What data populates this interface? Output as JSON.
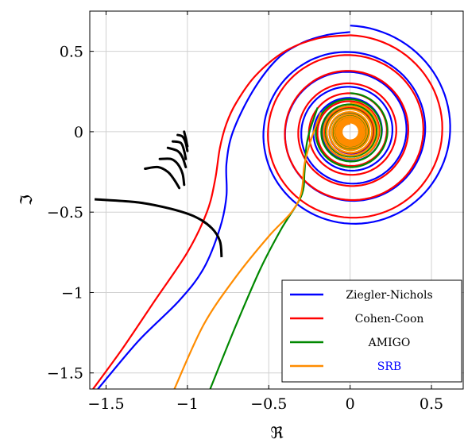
{
  "chart_data": {
    "type": "line",
    "title": "",
    "xlabel": "ℜ",
    "ylabel": "ℑ",
    "xlim": [
      -1.6,
      0.7
    ],
    "ylim": [
      -1.6,
      0.75
    ],
    "x_ticks": [
      -1.5,
      -1,
      -0.5,
      0,
      0.5
    ],
    "x_tick_labels": [
      "−1.5",
      "−1",
      "−0.5",
      "0",
      "0.5"
    ],
    "y_ticks": [
      -1.5,
      -1,
      -0.5,
      0,
      0.5
    ],
    "y_tick_labels": [
      "−1.5",
      "−1",
      "−0.5",
      "0",
      "0.5"
    ],
    "grid": true,
    "legend_position": "bottom-right",
    "series": [
      {
        "name": "Ziegler-Nichols",
        "color": "#0000ff",
        "tail": [
          [
            -1.55,
            -1.6
          ],
          [
            -1.3,
            -1.3
          ],
          [
            -1.05,
            -1.05
          ],
          [
            -0.9,
            -0.85
          ],
          [
            -0.8,
            -0.6
          ],
          [
            -0.76,
            -0.4
          ],
          [
            -0.76,
            -0.2
          ],
          [
            -0.72,
            0
          ],
          [
            -0.6,
            0.25
          ],
          [
            -0.45,
            0.45
          ],
          [
            -0.3,
            0.55
          ],
          [
            -0.15,
            0.6
          ],
          [
            0,
            0.62
          ]
        ],
        "spiral": {
          "center": [
            0,
            0
          ],
          "r_outer": 0.66,
          "r_inner": 0.05,
          "turns": 9
        }
      },
      {
        "name": "Cohen-Coon",
        "color": "#ff0000",
        "tail": [
          [
            -1.58,
            -1.6
          ],
          [
            -1.4,
            -1.35
          ],
          [
            -1.2,
            -1.05
          ],
          [
            -1.0,
            -0.75
          ],
          [
            -0.88,
            -0.5
          ],
          [
            -0.83,
            -0.3
          ],
          [
            -0.8,
            -0.1
          ],
          [
            -0.76,
            0.05
          ],
          [
            -0.7,
            0.18
          ],
          [
            -0.58,
            0.35
          ],
          [
            -0.4,
            0.5
          ],
          [
            -0.2,
            0.58
          ],
          [
            0,
            0.6
          ]
        ],
        "spiral": {
          "center": [
            0,
            0
          ],
          "r_outer": 0.6,
          "r_inner": 0.06,
          "turns": 10
        }
      },
      {
        "name": "AMIGO",
        "color": "#008800",
        "tail": [
          [
            -0.86,
            -1.6
          ],
          [
            -0.7,
            -1.2
          ],
          [
            -0.55,
            -0.85
          ],
          [
            -0.42,
            -0.6
          ],
          [
            -0.3,
            -0.4
          ],
          [
            -0.28,
            -0.25
          ],
          [
            -0.27,
            -0.1
          ],
          [
            -0.25,
            0.0
          ],
          [
            -0.2,
            0.15
          ]
        ],
        "spiral": {
          "center": [
            0,
            0
          ],
          "r_outer": 0.24,
          "r_inner": 0.06,
          "turns": 8
        }
      },
      {
        "name": "SRB",
        "color": "#ff8c00",
        "tail": [
          [
            -1.08,
            -1.6
          ],
          [
            -0.9,
            -1.2
          ],
          [
            -0.7,
            -0.9
          ],
          [
            -0.5,
            -0.65
          ],
          [
            -0.36,
            -0.5
          ],
          [
            -0.3,
            -0.38
          ],
          [
            -0.28,
            -0.2
          ],
          [
            -0.24,
            -0.05
          ],
          [
            -0.18,
            0.12
          ]
        ],
        "spiral": {
          "center": [
            0,
            0
          ],
          "r_outer": 0.18,
          "r_inner": 0.05,
          "turns": 10
        }
      },
      {
        "name": "",
        "color": "#000000",
        "tail": [
          [
            -1.57,
            -0.42
          ],
          [
            -1.3,
            -0.44
          ],
          [
            -1.1,
            -0.48
          ],
          [
            -0.95,
            -0.53
          ],
          [
            -0.85,
            -0.6
          ],
          [
            -0.8,
            -0.68
          ],
          [
            -0.79,
            -0.78
          ]
        ],
        "hooks": [
          [
            [
              -1.26,
              -0.23
            ],
            [
              -1.18,
              -0.22
            ],
            [
              -1.12,
              -0.25
            ],
            [
              -1.08,
              -0.3
            ],
            [
              -1.05,
              -0.35
            ]
          ],
          [
            [
              -1.17,
              -0.17
            ],
            [
              -1.1,
              -0.17
            ],
            [
              -1.06,
              -0.2
            ],
            [
              -1.03,
              -0.26
            ],
            [
              -1.02,
              -0.33
            ]
          ],
          [
            [
              -1.12,
              -0.1
            ],
            [
              -1.06,
              -0.12
            ],
            [
              -1.03,
              -0.16
            ],
            [
              -1.01,
              -0.22
            ]
          ],
          [
            [
              -1.09,
              -0.06
            ],
            [
              -1.04,
              -0.07
            ],
            [
              -1.02,
              -0.12
            ],
            [
              -1.01,
              -0.17
            ]
          ],
          [
            [
              -1.06,
              -0.02
            ],
            [
              -1.03,
              -0.03
            ],
            [
              -1.01,
              -0.07
            ],
            [
              -1.0,
              -0.12
            ]
          ],
          [
            [
              -1.02,
              0.0
            ],
            [
              -1.01,
              -0.04
            ],
            [
              -1.0,
              -0.09
            ]
          ]
        ]
      }
    ]
  }
}
